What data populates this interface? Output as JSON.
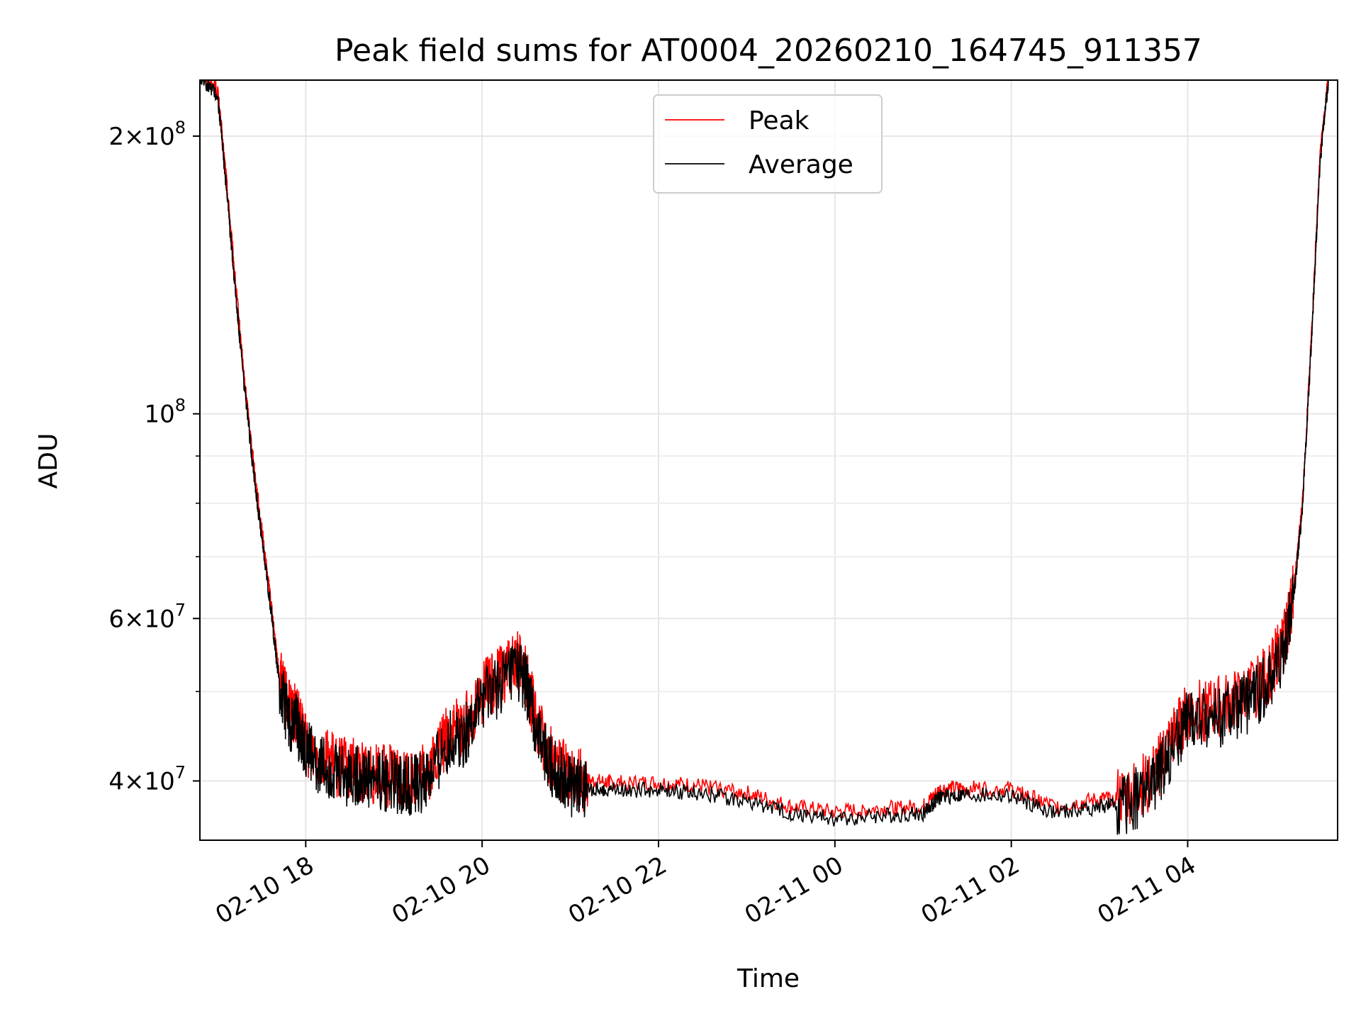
{
  "chart_data": {
    "type": "line",
    "title": "Peak field sums for AT0004_20260210_164745_911357",
    "xlabel": "Time",
    "ylabel": "ADU",
    "yscale": "log",
    "ylim": [
      34500000,
      230000000
    ],
    "xlim_hours": [
      -1.2,
      11.7
    ],
    "x_unit": "hours since 02-10 18:00",
    "grid": true,
    "legend_position": "top-center",
    "x_ticks": [
      {
        "hour": 0,
        "label": "02-10 18"
      },
      {
        "hour": 2,
        "label": "02-10 20"
      },
      {
        "hour": 4,
        "label": "02-10 22"
      },
      {
        "hour": 6,
        "label": "02-11 00"
      },
      {
        "hour": 8,
        "label": "02-11 02"
      },
      {
        "hour": 10,
        "label": "02-11 04"
      }
    ],
    "y_major_ticks": [
      {
        "value": 40000000,
        "mantissa": "4",
        "exp": "7",
        "prefix": "4×10"
      },
      {
        "value": 60000000,
        "mantissa": "6",
        "exp": "7",
        "prefix": "6×10"
      },
      {
        "value": 100000000,
        "mantissa": "",
        "exp": "8",
        "prefix": "10"
      },
      {
        "value": 200000000,
        "mantissa": "2",
        "exp": "8",
        "prefix": "2×10"
      }
    ],
    "y_minor_ticks": [
      50000000,
      70000000,
      80000000,
      90000000
    ],
    "series": [
      {
        "name": "Peak",
        "color": "#ff0000",
        "x": [
          -1.2,
          -1.0,
          -0.9,
          -0.8,
          -0.7,
          -0.6,
          -0.5,
          -0.4,
          -0.3,
          -0.2,
          -0.1,
          0.0,
          0.2,
          0.4,
          0.6,
          0.8,
          1.0,
          1.2,
          1.4,
          1.6,
          1.8,
          2.0,
          2.2,
          2.4,
          2.5,
          2.6,
          2.8,
          3.0,
          3.2,
          3.5,
          4.0,
          4.5,
          5.0,
          5.5,
          6.0,
          6.5,
          7.0,
          7.2,
          7.5,
          8.0,
          8.5,
          9.0,
          9.3,
          9.6,
          9.8,
          10.0,
          10.3,
          10.6,
          10.9,
          11.1,
          11.2,
          11.3,
          11.4,
          11.5,
          11.6
        ],
        "y": [
          235000000,
          225000000,
          180000000,
          140000000,
          110000000,
          90000000,
          75000000,
          63000000,
          52000000,
          48000000,
          47000000,
          44000000,
          42500000,
          41500000,
          41200000,
          41000000,
          40500000,
          40200000,
          41000000,
          45000000,
          46000000,
          50000000,
          52000000,
          54000000,
          52000000,
          47000000,
          42000000,
          40500000,
          40000000,
          39800000,
          39800000,
          39500000,
          38800000,
          37500000,
          37000000,
          37300000,
          37500000,
          39200000,
          39300000,
          39200000,
          37500000,
          38200000,
          38500000,
          40500000,
          44000000,
          47500000,
          48000000,
          49000000,
          52000000,
          57000000,
          64000000,
          80000000,
          120000000,
          190000000,
          235000000
        ]
      },
      {
        "name": "Average",
        "color": "#000000",
        "x": [
          -1.2,
          -1.0,
          -0.9,
          -0.8,
          -0.7,
          -0.6,
          -0.5,
          -0.4,
          -0.3,
          -0.2,
          -0.1,
          0.0,
          0.2,
          0.4,
          0.6,
          0.8,
          1.0,
          1.2,
          1.4,
          1.6,
          1.8,
          2.0,
          2.2,
          2.4,
          2.5,
          2.6,
          2.8,
          3.0,
          3.2,
          3.5,
          4.0,
          4.5,
          5.0,
          5.5,
          6.0,
          6.5,
          7.0,
          7.2,
          7.5,
          8.0,
          8.5,
          9.0,
          9.3,
          9.6,
          9.8,
          10.0,
          10.3,
          10.6,
          10.9,
          11.1,
          11.2,
          11.3,
          11.4,
          11.5,
          11.6
        ],
        "y": [
          232000000,
          222000000,
          176000000,
          137000000,
          108000000,
          88000000,
          73500000,
          62000000,
          51000000,
          47000000,
          46000000,
          43200000,
          41700000,
          40800000,
          40500000,
          40300000,
          39800000,
          39500000,
          40200000,
          44000000,
          45000000,
          49000000,
          51000000,
          53000000,
          51000000,
          46000000,
          41200000,
          39700000,
          39300000,
          39100000,
          39100000,
          38800000,
          38100000,
          36900000,
          36400000,
          36700000,
          36900000,
          38500000,
          38600000,
          38500000,
          36900000,
          37500000,
          37800000,
          39600000,
          43000000,
          46500000,
          47000000,
          48000000,
          51000000,
          56000000,
          63000000,
          79000000,
          118000000,
          188000000,
          232000000
        ]
      }
    ]
  }
}
